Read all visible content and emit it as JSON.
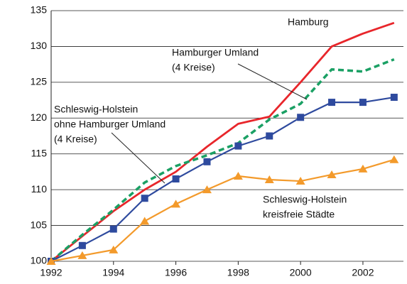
{
  "chart_data": {
    "type": "line",
    "x": [
      1992,
      1993,
      1994,
      1995,
      1996,
      1997,
      1998,
      1999,
      2000,
      2001,
      2002,
      2003
    ],
    "xlim": [
      1992,
      2003.3
    ],
    "xticks": [
      1992,
      1994,
      1996,
      1998,
      2000,
      2002
    ],
    "ylim": [
      100,
      135
    ],
    "yticks": [
      100,
      105,
      110,
      115,
      120,
      125,
      130,
      135
    ],
    "grid": true,
    "series": [
      {
        "name": [
          "Hamburg"
        ],
        "color": "#e8262b",
        "style": "solid",
        "marker": "none",
        "values": [
          100,
          103.5,
          107,
          110,
          112.5,
          116,
          119.2,
          120.2,
          125,
          130,
          131.8,
          133.3
        ]
      },
      {
        "name": [
          "Hamburger Umland",
          "(4 Kreise)"
        ],
        "color": "#1aa064",
        "style": "dashed",
        "marker": "none",
        "values": [
          100,
          103.7,
          107.2,
          111,
          113.3,
          114.8,
          116.5,
          119.8,
          122,
          126.8,
          126.5,
          128.2
        ]
      },
      {
        "name": [
          "Schleswig-Holstein",
          "ohne Hamburger Umland",
          "(4 Kreise)"
        ],
        "color": "#2e4a9e",
        "style": "solid",
        "marker": "square",
        "values": [
          100,
          102.2,
          104.5,
          108.8,
          111.5,
          113.9,
          116.1,
          117.5,
          120.1,
          122.2,
          122.2,
          122.9
        ]
      },
      {
        "name": [
          "Schleswig-Holstein",
          "kreisfreie Städte"
        ],
        "color": "#f39a2b",
        "style": "solid",
        "marker": "triangle",
        "values": [
          100,
          100.8,
          101.6,
          105.6,
          108,
          110,
          111.9,
          111.4,
          111.2,
          112.1,
          112.9,
          114.2
        ]
      }
    ]
  }
}
